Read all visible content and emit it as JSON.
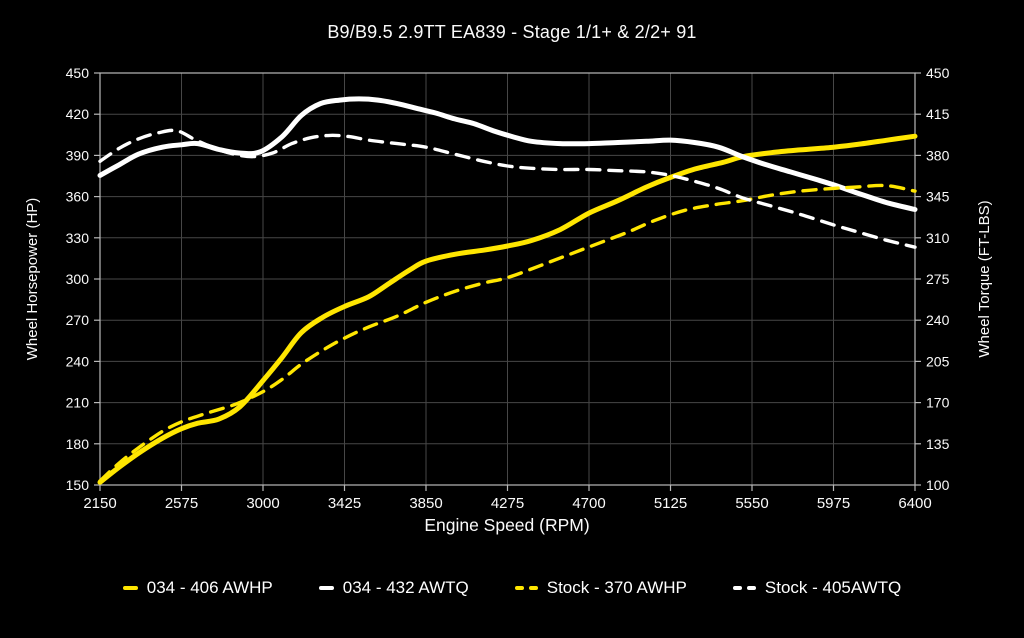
{
  "title": "B9/B9.5 2.9TT EA839 - Stage 1/1+ & 2/2+ 91",
  "chart_data": {
    "type": "line",
    "title": "B9/B9.5 2.9TT EA839 - Stage 1/1+ & 2/2+ 91",
    "xlabel": "Engine Speed (RPM)",
    "ylabel_left": "Wheel Horsepower (HP)",
    "ylabel_right": "Wheel Torque (FT-LBS)",
    "x_range": [
      2150,
      6400
    ],
    "left_range": [
      150,
      450
    ],
    "right_range": [
      100,
      450
    ],
    "x_ticks": [
      2150,
      2575,
      3000,
      3425,
      3850,
      4275,
      4700,
      5125,
      5550,
      5975,
      6400
    ],
    "left_ticks": [
      150,
      180,
      210,
      240,
      270,
      300,
      330,
      360,
      390,
      420,
      450
    ],
    "right_ticks": [
      100,
      135,
      170,
      205,
      240,
      275,
      310,
      345,
      380,
      415,
      450
    ],
    "grid": true,
    "legend_position": "bottom",
    "colors": {
      "yellow": "#ffe600",
      "white": "#ffffff",
      "grid": "#474747",
      "frame": "#b9b9b9",
      "background": "#000000",
      "text": "#fafafa"
    },
    "series": [
      {
        "name": "034 - 406 AWHP",
        "axis": "left",
        "color": "yellow",
        "dashed": false,
        "points": [
          [
            2150,
            152
          ],
          [
            2250,
            163
          ],
          [
            2360,
            174
          ],
          [
            2475,
            184
          ],
          [
            2575,
            191
          ],
          [
            2660,
            195
          ],
          [
            2770,
            198
          ],
          [
            2880,
            207
          ],
          [
            3000,
            226
          ],
          [
            3100,
            243
          ],
          [
            3200,
            261
          ],
          [
            3310,
            272
          ],
          [
            3425,
            280
          ],
          [
            3550,
            287
          ],
          [
            3660,
            297
          ],
          [
            3770,
            307
          ],
          [
            3850,
            313
          ],
          [
            4000,
            318
          ],
          [
            4150,
            321
          ],
          [
            4275,
            324
          ],
          [
            4400,
            328
          ],
          [
            4550,
            336
          ],
          [
            4700,
            348
          ],
          [
            4850,
            357
          ],
          [
            5000,
            367
          ],
          [
            5125,
            374
          ],
          [
            5250,
            380
          ],
          [
            5400,
            385
          ],
          [
            5500,
            389
          ],
          [
            5650,
            392
          ],
          [
            5800,
            394
          ],
          [
            5975,
            396
          ],
          [
            6100,
            398
          ],
          [
            6250,
            401
          ],
          [
            6400,
            404
          ]
        ]
      },
      {
        "name": "034 - 432 AWTQ",
        "axis": "right",
        "color": "white",
        "dashed": false,
        "points": [
          [
            2150,
            363
          ],
          [
            2250,
            372
          ],
          [
            2350,
            381
          ],
          [
            2475,
            387
          ],
          [
            2575,
            389
          ],
          [
            2660,
            390
          ],
          [
            2770,
            385
          ],
          [
            2875,
            382
          ],
          [
            2985,
            383
          ],
          [
            3100,
            396
          ],
          [
            3200,
            414
          ],
          [
            3300,
            424
          ],
          [
            3400,
            427
          ],
          [
            3500,
            428
          ],
          [
            3600,
            427
          ],
          [
            3700,
            424
          ],
          [
            3800,
            420
          ],
          [
            3900,
            416
          ],
          [
            4000,
            411
          ],
          [
            4100,
            407
          ],
          [
            4200,
            401
          ],
          [
            4300,
            396
          ],
          [
            4400,
            392
          ],
          [
            4550,
            390
          ],
          [
            4700,
            390
          ],
          [
            4850,
            391
          ],
          [
            5000,
            392
          ],
          [
            5125,
            393
          ],
          [
            5250,
            391
          ],
          [
            5375,
            387
          ],
          [
            5500,
            379
          ],
          [
            5625,
            372
          ],
          [
            5750,
            366
          ],
          [
            5875,
            360
          ],
          [
            5975,
            355
          ],
          [
            6100,
            348
          ],
          [
            6250,
            340
          ],
          [
            6400,
            334
          ]
        ]
      },
      {
        "name": "Stock - 370 AWHP",
        "axis": "left",
        "color": "yellow",
        "dashed": true,
        "points": [
          [
            2150,
            153
          ],
          [
            2250,
            166
          ],
          [
            2360,
            178
          ],
          [
            2475,
            189
          ],
          [
            2575,
            196
          ],
          [
            2700,
            202
          ],
          [
            2860,
            209
          ],
          [
            3000,
            218
          ],
          [
            3100,
            227
          ],
          [
            3200,
            238
          ],
          [
            3310,
            248
          ],
          [
            3425,
            257
          ],
          [
            3550,
            265
          ],
          [
            3700,
            273
          ],
          [
            3850,
            283
          ],
          [
            4000,
            291
          ],
          [
            4150,
            297
          ],
          [
            4275,
            301
          ],
          [
            4450,
            310
          ],
          [
            4600,
            318
          ],
          [
            4750,
            326
          ],
          [
            4900,
            334
          ],
          [
            5050,
            343
          ],
          [
            5200,
            350
          ],
          [
            5350,
            354
          ],
          [
            5500,
            357
          ],
          [
            5650,
            361
          ],
          [
            5800,
            364
          ],
          [
            5975,
            366
          ],
          [
            6100,
            367
          ],
          [
            6250,
            368
          ],
          [
            6400,
            364
          ]
        ]
      },
      {
        "name": "Stock - 405AWTQ",
        "axis": "right",
        "color": "white",
        "dashed": true,
        "points": [
          [
            2150,
            375
          ],
          [
            2250,
            386
          ],
          [
            2350,
            394
          ],
          [
            2450,
            399
          ],
          [
            2550,
            401
          ],
          [
            2650,
            393
          ],
          [
            2750,
            386
          ],
          [
            2850,
            381
          ],
          [
            2950,
            379
          ],
          [
            3050,
            382
          ],
          [
            3150,
            390
          ],
          [
            3250,
            395
          ],
          [
            3350,
            397
          ],
          [
            3450,
            396
          ],
          [
            3550,
            393
          ],
          [
            3700,
            390
          ],
          [
            3850,
            387
          ],
          [
            4000,
            381
          ],
          [
            4150,
            375
          ],
          [
            4275,
            371
          ],
          [
            4400,
            369
          ],
          [
            4550,
            368
          ],
          [
            4700,
            368
          ],
          [
            4850,
            367
          ],
          [
            5000,
            366
          ],
          [
            5125,
            363
          ],
          [
            5250,
            358
          ],
          [
            5375,
            352
          ],
          [
            5500,
            344
          ],
          [
            5650,
            337
          ],
          [
            5800,
            330
          ],
          [
            5975,
            321
          ],
          [
            6100,
            315
          ],
          [
            6250,
            308
          ],
          [
            6400,
            302
          ]
        ]
      }
    ]
  }
}
